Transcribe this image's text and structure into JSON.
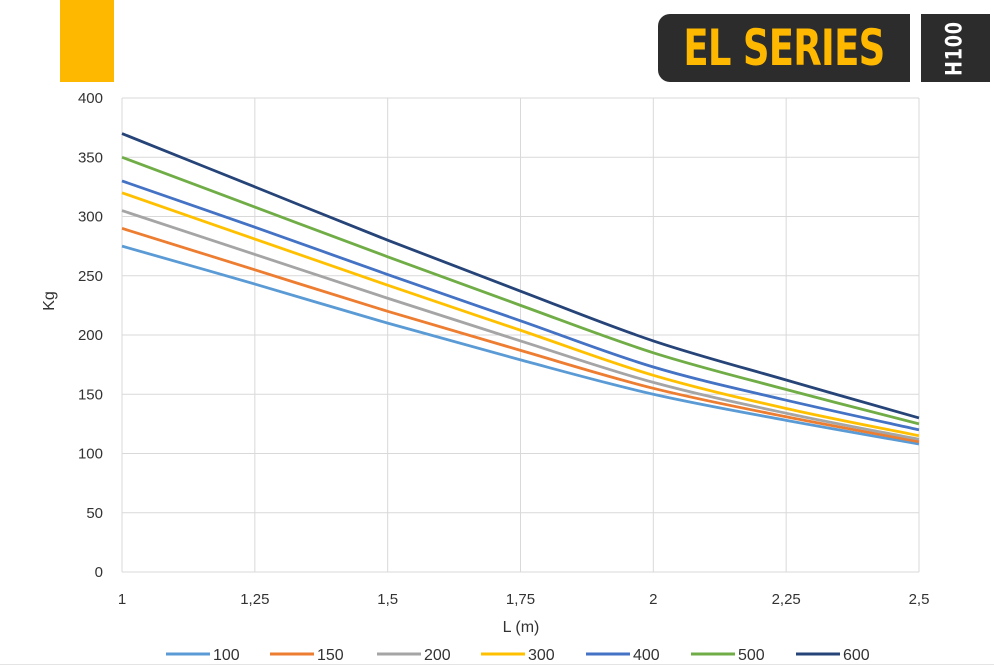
{
  "header": {
    "series_label": "EL SERIES",
    "model_label": "H100",
    "accent_color": "#FFB800",
    "badge_color": "#2C2C2C",
    "series_label_color": "#FFB800"
  },
  "chart_data": {
    "type": "line",
    "title": "",
    "xlabel": "L (m)",
    "ylabel": "Kg",
    "x": [
      1,
      1.25,
      1.5,
      1.75,
      2,
      2.25,
      2.5
    ],
    "x_tick_labels": [
      "1",
      "1,25",
      "1,5",
      "1,75",
      "2",
      "2,25",
      "2,5"
    ],
    "xlim": [
      1,
      2.5
    ],
    "ylim": [
      0,
      400
    ],
    "y_ticks": [
      0,
      50,
      100,
      150,
      200,
      250,
      300,
      350,
      400
    ],
    "grid": true,
    "legend_position": "bottom",
    "series": [
      {
        "name": "100",
        "color": "#5B9BD5",
        "values": [
          275,
          243,
          210,
          179,
          150,
          128,
          108
        ]
      },
      {
        "name": "150",
        "color": "#ED7D31",
        "values": [
          290,
          255,
          220,
          187,
          155,
          131,
          110
        ]
      },
      {
        "name": "200",
        "color": "#A5A5A5",
        "values": [
          305,
          268,
          231,
          195,
          160,
          134,
          112
        ]
      },
      {
        "name": "300",
        "color": "#FFC000",
        "values": [
          320,
          281,
          242,
          204,
          166,
          138,
          115
        ]
      },
      {
        "name": "400",
        "color": "#4472C4",
        "values": [
          330,
          291,
          251,
          212,
          173,
          145,
          120
        ]
      },
      {
        "name": "500",
        "color": "#70AD47",
        "values": [
          350,
          308,
          266,
          225,
          185,
          154,
          125
        ]
      },
      {
        "name": "600",
        "color": "#264478",
        "values": [
          370,
          325,
          280,
          237,
          195,
          162,
          130
        ]
      }
    ]
  }
}
